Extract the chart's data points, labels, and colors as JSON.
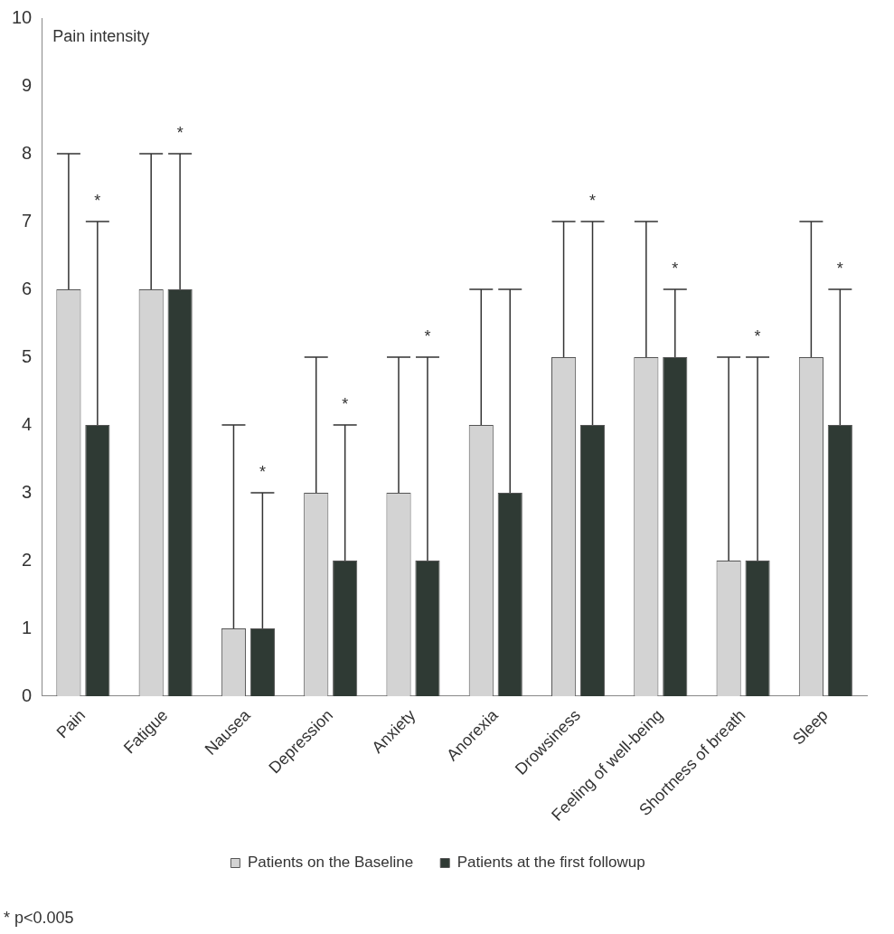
{
  "chart_data": {
    "type": "bar",
    "title": "Pain intensity",
    "categories": [
      "Pain",
      "Fatigue",
      "Nausea",
      "Depression",
      "Anxiety",
      "Anorexia",
      "Drowsiness",
      "Feeling of well-being",
      "Shortness of breath",
      "Sleep"
    ],
    "series": [
      {
        "name": "Patients on the Baseline",
        "color": "#d3d3d3",
        "values": [
          6,
          6,
          1,
          3,
          3,
          4,
          5,
          5,
          2,
          5
        ],
        "errors": [
          [
            6,
            8
          ],
          [
            6,
            8
          ],
          [
            1,
            4
          ],
          [
            3,
            5
          ],
          [
            3,
            5
          ],
          [
            4,
            6
          ],
          [
            5,
            7
          ],
          [
            5,
            7
          ],
          [
            2,
            5
          ],
          [
            5,
            7
          ]
        ]
      },
      {
        "name": "Patients at the first followup",
        "color": "#2f3a34",
        "values": [
          4,
          6,
          1,
          2,
          2,
          3,
          4,
          5,
          2,
          4
        ],
        "errors": [
          [
            4,
            7
          ],
          [
            6,
            8
          ],
          [
            1,
            3
          ],
          [
            2,
            4
          ],
          [
            2,
            5
          ],
          [
            3,
            6
          ],
          [
            4,
            7
          ],
          [
            5,
            6
          ],
          [
            2,
            5
          ],
          [
            4,
            6
          ]
        ]
      }
    ],
    "ylim": [
      0,
      10
    ],
    "yticks": [
      0,
      1,
      2,
      3,
      4,
      5,
      6,
      7,
      8,
      9,
      10
    ],
    "grid": false,
    "legend": "bottom",
    "annotations": [
      {
        "text": "*",
        "x": "Pain",
        "y": 7
      },
      {
        "text": "*",
        "x": "Fatigue",
        "y": 8
      },
      {
        "text": "*",
        "x": "Nausea",
        "y": 3
      },
      {
        "text": "*",
        "x": "Depression",
        "y": 4
      },
      {
        "text": "*",
        "x": "Anxiety",
        "y": 5
      },
      {
        "text": "*",
        "x": "Drowsiness",
        "y": 7
      },
      {
        "text": "*",
        "x": "Feeling of well-being",
        "y": 6
      },
      {
        "text": "*",
        "x": "Shortness of breath",
        "y": 5
      },
      {
        "text": "*",
        "x": "Sleep",
        "y": 6
      },
      "* p<0.005"
    ]
  }
}
